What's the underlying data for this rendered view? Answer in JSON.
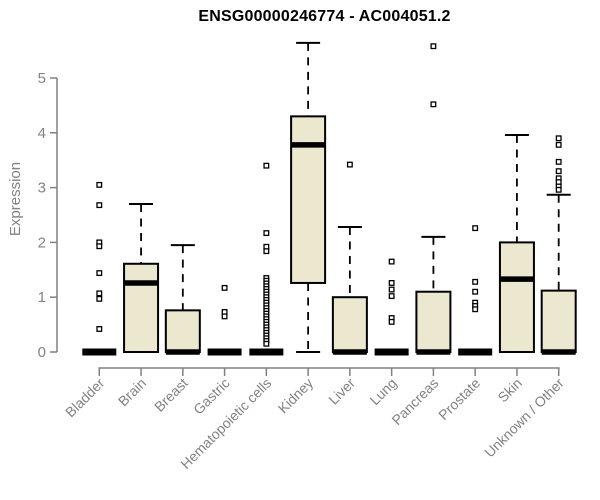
{
  "chart_data": {
    "type": "boxplot",
    "title": "ENSG00000246774 - AC004051.2",
    "ylabel": "Expression",
    "xlabel": "",
    "ylim": [
      -0.3,
      5.9
    ],
    "yticks": [
      0,
      1,
      2,
      3,
      4,
      5
    ],
    "grid": "off",
    "legend": "none",
    "categories": [
      "Bladder",
      "Brain",
      "Breast",
      "Gastric",
      "Hematopoietic cells",
      "Kidney",
      "Liver",
      "Lung",
      "Pancreas",
      "Prostate",
      "Skin",
      "Unknown / Other"
    ],
    "series": [
      {
        "name": "Bladder",
        "q1": 0,
        "median": 0,
        "q3": 0,
        "whisker_low": 0,
        "whisker_high": 0,
        "outliers": [
          3.05,
          2.68,
          2.0,
          1.93,
          1.44,
          1.07,
          0.97,
          0.42
        ]
      },
      {
        "name": "Brain",
        "q1": 0,
        "median": 1.26,
        "q3": 1.61,
        "whisker_low": 0,
        "whisker_high": 2.7,
        "outliers": []
      },
      {
        "name": "Breast",
        "q1": 0,
        "median": 0,
        "q3": 0.76,
        "whisker_low": 0,
        "whisker_high": 1.95,
        "outliers": []
      },
      {
        "name": "Gastric",
        "q1": 0,
        "median": 0,
        "q3": 0,
        "whisker_low": 0,
        "whisker_high": 0,
        "outliers": [
          1.17,
          0.73,
          0.65
        ]
      },
      {
        "name": "Hematopoietic cells",
        "q1": 0,
        "median": 0,
        "q3": 0,
        "whisker_low": 0,
        "whisker_high": 0,
        "outliers": [
          3.4,
          2.17,
          1.92,
          1.84,
          1.35,
          1.3,
          1.25,
          1.2,
          1.15,
          1.1,
          1.05,
          1.0,
          0.95,
          0.9,
          0.85,
          0.8,
          0.75,
          0.7,
          0.65,
          0.6,
          0.55,
          0.5,
          0.45,
          0.4,
          0.35,
          0.3,
          0.25,
          0.2,
          0.15
        ]
      },
      {
        "name": "Kidney",
        "q1": 1.26,
        "median": 3.78,
        "q3": 4.3,
        "whisker_low": 0,
        "whisker_high": 5.64,
        "outliers": []
      },
      {
        "name": "Liver",
        "q1": 0,
        "median": 0,
        "q3": 1.0,
        "whisker_low": 0,
        "whisker_high": 2.28,
        "outliers": [
          3.42
        ]
      },
      {
        "name": "Lung",
        "q1": 0,
        "median": 0,
        "q3": 0,
        "whisker_low": 0,
        "whisker_high": 0,
        "outliers": [
          1.65,
          1.26,
          1.14,
          1.02,
          0.62,
          0.55
        ]
      },
      {
        "name": "Pancreas",
        "q1": 0,
        "median": 0,
        "q3": 1.1,
        "whisker_low": 0,
        "whisker_high": 2.1,
        "outliers": [
          5.58,
          4.52
        ]
      },
      {
        "name": "Prostate",
        "q1": 0,
        "median": 0,
        "q3": 0,
        "whisker_low": 0,
        "whisker_high": 0,
        "outliers": [
          2.26,
          1.28,
          1.1,
          0.9,
          0.84,
          0.78
        ]
      },
      {
        "name": "Skin",
        "q1": 0,
        "median": 1.33,
        "q3": 2.0,
        "whisker_low": 0,
        "whisker_high": 3.96,
        "outliers": []
      },
      {
        "name": "Unknown / Other",
        "q1": 0,
        "median": 0,
        "q3": 1.12,
        "whisker_low": 0,
        "whisker_high": 2.87,
        "outliers": [
          3.9,
          3.78,
          3.47,
          3.3,
          3.17,
          3.1,
          3.02,
          2.96
        ]
      }
    ],
    "style": {
      "box_fill": "#ece7cf",
      "box_border": "#000000",
      "median_color": "#000000",
      "whisker_color": "#000000",
      "outlier_fill": "#ffffff",
      "outlier_border": "#000000",
      "axis_color": "#808080",
      "tick_label_color": "#828282",
      "title_color": "#000000"
    }
  }
}
